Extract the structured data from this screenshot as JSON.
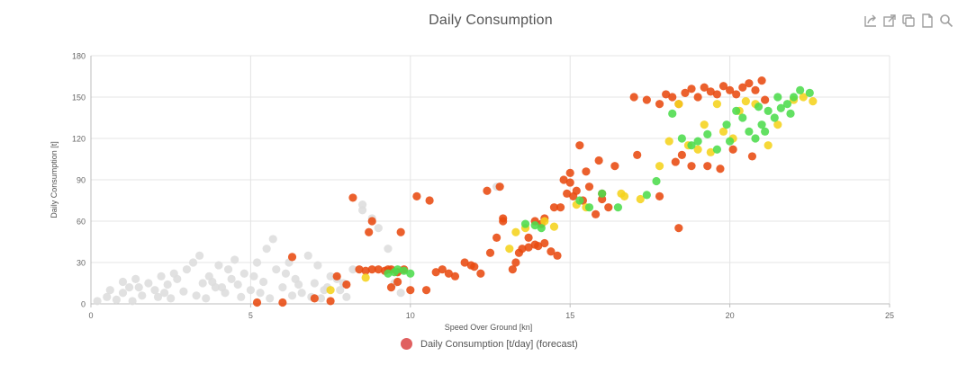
{
  "colors": {
    "grey": "#dddddd",
    "orange": "#e84a10",
    "yellow": "#f5d31c",
    "green": "#4cdc4c",
    "legend": "#e06060",
    "grid": "#e4e4e4",
    "axis": "#bdbdbd",
    "tool_icon": "#9e9e9e"
  },
  "toolbar": {
    "icons": [
      "share-icon",
      "open-external-icon",
      "copy-icon",
      "document-icon",
      "search-icon"
    ]
  },
  "chart_data": {
    "type": "scatter",
    "title": "Daily Consumption",
    "xlabel": "Speed Over Ground [kn]",
    "ylabel": "Daily Consumption [t]",
    "xlim": [
      0,
      25
    ],
    "ylim": [
      0,
      180
    ],
    "xticks": [
      0,
      5,
      10,
      15,
      20,
      25
    ],
    "yticks": [
      0,
      30,
      60,
      90,
      120,
      150,
      180
    ],
    "grid": true,
    "legend": {
      "position": "bottom",
      "entries": [
        "Daily Consumption [t/day] (forecast)"
      ]
    },
    "series": [
      {
        "color_key": "grey",
        "points": [
          [
            0.2,
            2
          ],
          [
            0.5,
            5
          ],
          [
            0.8,
            3
          ],
          [
            1.0,
            8
          ],
          [
            1.2,
            12
          ],
          [
            1.4,
            18
          ],
          [
            1.6,
            6
          ],
          [
            1.8,
            15
          ],
          [
            2.0,
            10
          ],
          [
            2.2,
            20
          ],
          [
            2.4,
            14
          ],
          [
            2.5,
            4
          ],
          [
            2.7,
            18
          ],
          [
            2.9,
            9
          ],
          [
            3.0,
            25
          ],
          [
            3.2,
            30
          ],
          [
            3.4,
            35
          ],
          [
            3.5,
            15
          ],
          [
            3.7,
            20
          ],
          [
            3.9,
            12
          ],
          [
            4.0,
            28
          ],
          [
            4.2,
            8
          ],
          [
            4.4,
            18
          ],
          [
            4.5,
            32
          ],
          [
            4.6,
            14
          ],
          [
            4.8,
            22
          ],
          [
            5.0,
            10
          ],
          [
            5.2,
            30
          ],
          [
            5.4,
            16
          ],
          [
            5.5,
            40
          ],
          [
            5.7,
            47
          ],
          [
            5.8,
            25
          ],
          [
            6.0,
            12
          ],
          [
            6.2,
            30
          ],
          [
            6.4,
            18
          ],
          [
            6.6,
            8
          ],
          [
            6.8,
            35
          ],
          [
            7.0,
            15
          ],
          [
            7.1,
            28
          ],
          [
            7.3,
            10
          ],
          [
            7.5,
            20
          ],
          [
            7.7,
            18
          ],
          [
            7.9,
            15
          ],
          [
            8.0,
            5
          ],
          [
            8.2,
            25
          ],
          [
            8.5,
            68
          ],
          [
            8.5,
            72
          ],
          [
            8.8,
            62
          ],
          [
            9.0,
            55
          ],
          [
            9.3,
            40
          ],
          [
            9.5,
            15
          ],
          [
            9.7,
            8
          ],
          [
            1.0,
            16
          ],
          [
            1.5,
            12
          ],
          [
            2.1,
            5
          ],
          [
            2.6,
            22
          ],
          [
            3.3,
            6
          ],
          [
            3.8,
            16
          ],
          [
            4.3,
            25
          ],
          [
            4.7,
            5
          ],
          [
            5.1,
            20
          ],
          [
            5.6,
            4
          ],
          [
            6.1,
            22
          ],
          [
            6.5,
            14
          ],
          [
            6.9,
            5
          ],
          [
            7.4,
            12
          ],
          [
            0.6,
            10
          ],
          [
            1.3,
            2
          ],
          [
            2.3,
            8
          ],
          [
            3.6,
            4
          ],
          [
            4.1,
            12
          ],
          [
            5.3,
            8
          ],
          [
            6.3,
            6
          ],
          [
            7.2,
            4
          ],
          [
            7.8,
            10
          ],
          [
            12.7,
            85
          ]
        ]
      },
      {
        "color_key": "orange",
        "points": [
          [
            5.2,
            1
          ],
          [
            6.0,
            1
          ],
          [
            6.3,
            34
          ],
          [
            7.0,
            4
          ],
          [
            7.5,
            2
          ],
          [
            7.7,
            20
          ],
          [
            8.0,
            14
          ],
          [
            8.2,
            77
          ],
          [
            8.4,
            25
          ],
          [
            8.6,
            24
          ],
          [
            8.8,
            25
          ],
          [
            9.0,
            25
          ],
          [
            9.2,
            24
          ],
          [
            9.4,
            25
          ],
          [
            9.6,
            23
          ],
          [
            9.8,
            25
          ],
          [
            8.7,
            52
          ],
          [
            8.8,
            60
          ],
          [
            9.3,
            25
          ],
          [
            9.4,
            12
          ],
          [
            9.6,
            16
          ],
          [
            9.7,
            52
          ],
          [
            10.0,
            10
          ],
          [
            10.2,
            78
          ],
          [
            10.5,
            10
          ],
          [
            10.6,
            75
          ],
          [
            10.8,
            23
          ],
          [
            11.0,
            25
          ],
          [
            11.2,
            22
          ],
          [
            11.4,
            20
          ],
          [
            11.7,
            30
          ],
          [
            11.9,
            28
          ],
          [
            12.0,
            27
          ],
          [
            12.2,
            22
          ],
          [
            12.5,
            37
          ],
          [
            12.7,
            48
          ],
          [
            12.9,
            62
          ],
          [
            12.9,
            60
          ],
          [
            13.2,
            25
          ],
          [
            13.4,
            37
          ],
          [
            13.5,
            40
          ],
          [
            13.7,
            41
          ],
          [
            13.9,
            43
          ],
          [
            14.0,
            42
          ],
          [
            14.2,
            44
          ],
          [
            14.4,
            38
          ],
          [
            14.6,
            35
          ],
          [
            13.9,
            60
          ],
          [
            14.2,
            62
          ],
          [
            14.5,
            70
          ],
          [
            14.8,
            90
          ],
          [
            15.0,
            95
          ],
          [
            15.2,
            82
          ],
          [
            15.4,
            75
          ],
          [
            15.6,
            85
          ],
          [
            15.8,
            65
          ],
          [
            16.0,
            80
          ],
          [
            16.2,
            70
          ],
          [
            16.4,
            100
          ],
          [
            15.0,
            88
          ],
          [
            15.3,
            115
          ],
          [
            16.0,
            76
          ],
          [
            13.7,
            48
          ],
          [
            13.3,
            30
          ],
          [
            12.4,
            82
          ],
          [
            12.8,
            85
          ],
          [
            14.1,
            58
          ],
          [
            14.7,
            70
          ],
          [
            15.5,
            96
          ],
          [
            15.9,
            104
          ],
          [
            17.0,
            150
          ],
          [
            17.4,
            148
          ],
          [
            17.8,
            145
          ],
          [
            18.0,
            152
          ],
          [
            18.2,
            150
          ],
          [
            18.4,
            145
          ],
          [
            18.6,
            153
          ],
          [
            18.8,
            156
          ],
          [
            19.0,
            150
          ],
          [
            19.2,
            157
          ],
          [
            19.4,
            154
          ],
          [
            19.6,
            152
          ],
          [
            19.8,
            158
          ],
          [
            20.0,
            155
          ],
          [
            20.2,
            152
          ],
          [
            20.4,
            157
          ],
          [
            20.6,
            160
          ],
          [
            20.8,
            155
          ],
          [
            21.0,
            162
          ],
          [
            21.1,
            148
          ],
          [
            18.4,
            55
          ],
          [
            18.3,
            103
          ],
          [
            18.5,
            108
          ],
          [
            18.8,
            100
          ],
          [
            19.3,
            100
          ],
          [
            19.7,
            98
          ],
          [
            20.1,
            112
          ],
          [
            20.7,
            107
          ],
          [
            17.8,
            78
          ],
          [
            17.1,
            108
          ],
          [
            15.1,
            78
          ],
          [
            14.9,
            80
          ]
        ]
      },
      {
        "color_key": "yellow",
        "points": [
          [
            7.5,
            10
          ],
          [
            8.6,
            19
          ],
          [
            13.1,
            40
          ],
          [
            13.3,
            52
          ],
          [
            13.6,
            55
          ],
          [
            14.2,
            60
          ],
          [
            14.5,
            56
          ],
          [
            15.2,
            72
          ],
          [
            15.5,
            70
          ],
          [
            16.6,
            80
          ],
          [
            16.7,
            78
          ],
          [
            17.2,
            76
          ],
          [
            17.8,
            100
          ],
          [
            18.1,
            118
          ],
          [
            18.4,
            145
          ],
          [
            18.7,
            115
          ],
          [
            19.0,
            112
          ],
          [
            19.2,
            130
          ],
          [
            19.4,
            110
          ],
          [
            19.6,
            145
          ],
          [
            19.8,
            125
          ],
          [
            20.1,
            120
          ],
          [
            20.3,
            140
          ],
          [
            20.5,
            147
          ],
          [
            21.5,
            130
          ],
          [
            22.0,
            148
          ],
          [
            22.3,
            150
          ],
          [
            22.6,
            147
          ],
          [
            21.2,
            115
          ],
          [
            20.8,
            145
          ]
        ]
      },
      {
        "color_key": "green",
        "points": [
          [
            9.3,
            22
          ],
          [
            9.5,
            23
          ],
          [
            9.6,
            25
          ],
          [
            9.8,
            24
          ],
          [
            10.0,
            22
          ],
          [
            13.6,
            58
          ],
          [
            13.9,
            57
          ],
          [
            14.1,
            55
          ],
          [
            15.3,
            75
          ],
          [
            15.6,
            70
          ],
          [
            16.0,
            80
          ],
          [
            16.5,
            70
          ],
          [
            17.4,
            79
          ],
          [
            17.7,
            89
          ],
          [
            18.2,
            138
          ],
          [
            18.5,
            120
          ],
          [
            18.8,
            115
          ],
          [
            19.0,
            118
          ],
          [
            19.3,
            123
          ],
          [
            19.6,
            112
          ],
          [
            19.9,
            130
          ],
          [
            20.0,
            118
          ],
          [
            20.2,
            140
          ],
          [
            20.4,
            135
          ],
          [
            20.6,
            125
          ],
          [
            20.8,
            120
          ],
          [
            21.0,
            130
          ],
          [
            21.2,
            140
          ],
          [
            21.4,
            135
          ],
          [
            21.6,
            142
          ],
          [
            21.8,
            145
          ],
          [
            22.0,
            150
          ],
          [
            22.2,
            155
          ],
          [
            22.5,
            153
          ],
          [
            21.1,
            125
          ],
          [
            21.5,
            150
          ],
          [
            21.9,
            138
          ],
          [
            20.9,
            143
          ]
        ]
      }
    ]
  }
}
